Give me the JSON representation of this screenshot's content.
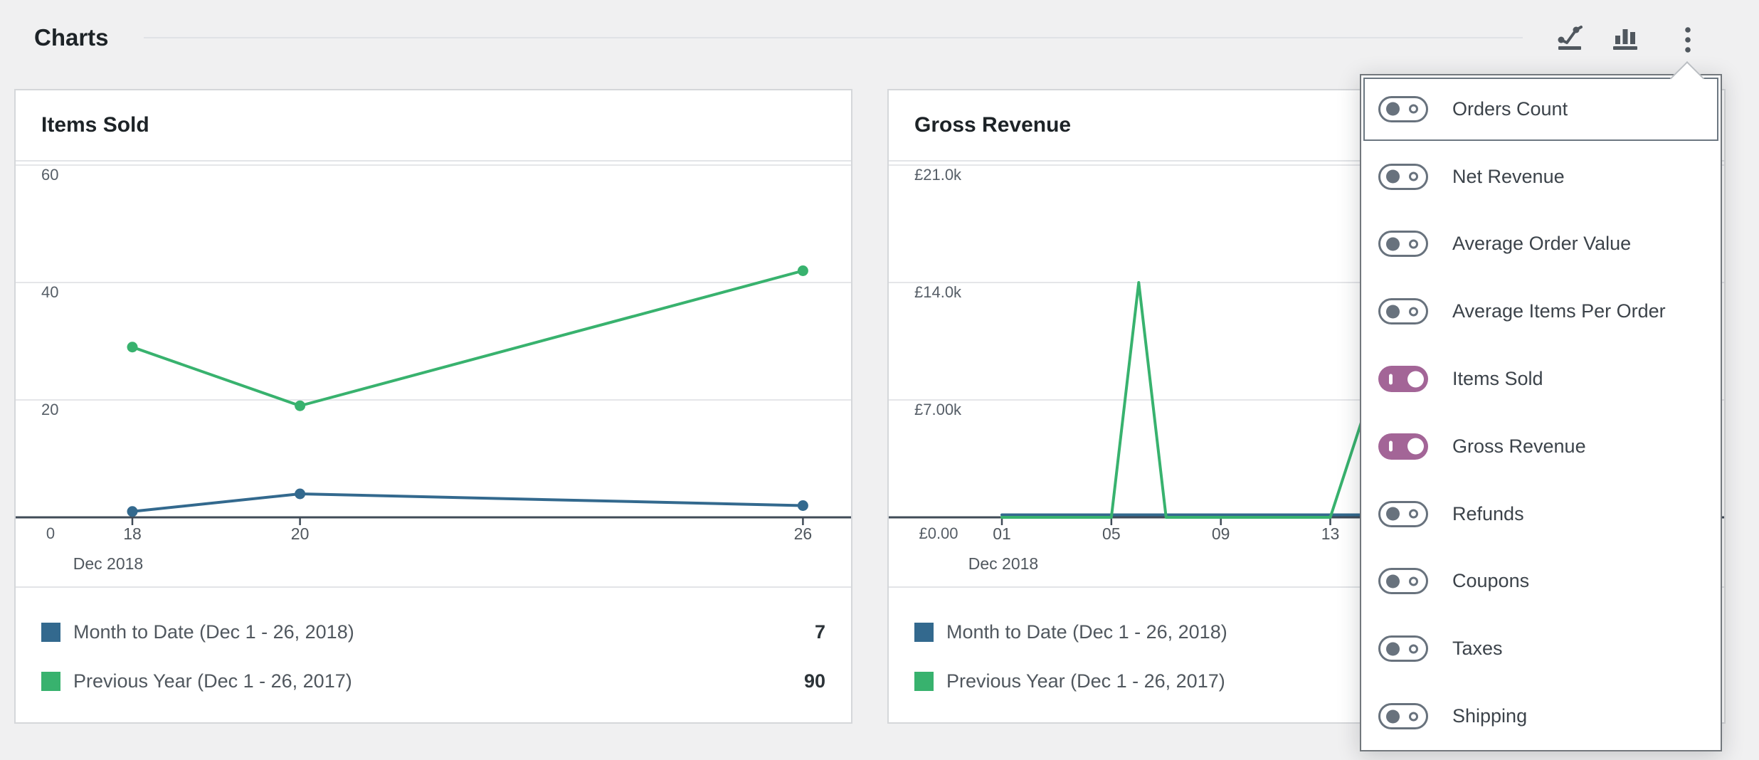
{
  "section": {
    "title": "Charts",
    "toolbar": {
      "line_chart_button": "line-chart-type",
      "bar_chart_button": "bar-chart-type",
      "ellipsis_button": "chart-options-menu"
    }
  },
  "colors": {
    "background": "#f0f0f1",
    "card_border": "#d5d7da",
    "gridline": "#e5e6e9",
    "baseline": "#404b57",
    "primary_blue": "#33698e",
    "secondary_green": "#38b26e",
    "toggle_on_purple": "#a36597",
    "toggle_off_gray": "#68727d"
  },
  "chart_data": [
    {
      "type": "line",
      "title": "Items Sold",
      "xlabel": "Dec 2018",
      "ylabel": "",
      "ylim": [
        0,
        60
      ],
      "y_tick_labels": [
        "60",
        "40",
        "20"
      ],
      "zero_label": "0",
      "x_tick_labels": [
        "18",
        "20",
        "26"
      ],
      "x_tick_days": [
        18,
        20,
        26
      ],
      "month_label": "Dec 2018",
      "grid": true,
      "markers": true,
      "legend_position": "bottom",
      "series": [
        {
          "name": "Month to Date (Dec 1 - 26, 2018)",
          "color": "#33698e",
          "points": [
            [
              18,
              1
            ],
            [
              20,
              4
            ],
            [
              26,
              2
            ]
          ]
        },
        {
          "name": "Previous Year (Dec 1 - 26, 2017)",
          "color": "#38b26e",
          "points": [
            [
              18,
              29
            ],
            [
              20,
              19
            ],
            [
              26,
              42
            ]
          ]
        }
      ],
      "legend": [
        {
          "label": "Month to Date (Dec 1 - 26, 2018)",
          "value": "7",
          "color": "#33698e"
        },
        {
          "label": "Previous Year (Dec 1 - 26, 2017)",
          "value": "90",
          "color": "#38b26e"
        }
      ]
    },
    {
      "type": "line",
      "title": "Gross Revenue",
      "xlabel": "Dec 2018",
      "ylabel": "",
      "ylim": [
        0,
        21000
      ],
      "y_tick_labels": [
        "£21.0k",
        "£14.0k",
        "£7.00k"
      ],
      "zero_label": "£0.00",
      "x_tick_labels": [
        "01",
        "05",
        "09",
        "13"
      ],
      "x_tick_days": [
        1,
        5,
        9,
        13
      ],
      "month_label": "Dec 2018",
      "grid": true,
      "markers": false,
      "legend_position": "bottom",
      "note": "right portion of chart and legend values hidden behind open dropdown menu",
      "series": [
        {
          "name": "Month to Date (Dec 1 - 26, 2018)",
          "color": "#33698e",
          "points": [
            [
              1,
              150
            ],
            [
              26,
              150
            ]
          ]
        },
        {
          "name": "Previous Year (Dec 1 - 26, 2017)",
          "color": "#38b26e",
          "points": [
            [
              1,
              0
            ],
            [
              5,
              0
            ],
            [
              6,
              14000
            ],
            [
              7,
              0
            ],
            [
              13,
              0
            ],
            [
              14.3,
              6500
            ]
          ]
        }
      ],
      "legend": [
        {
          "label": "Month to Date (Dec 1 - 26, 2018)",
          "value": "",
          "color": "#33698e"
        },
        {
          "label": "Previous Year (Dec 1 - 26, 2017)",
          "value": "",
          "color": "#38b26e"
        }
      ]
    }
  ],
  "menu": {
    "items": [
      {
        "label": "Orders Count",
        "on": false,
        "focused": true
      },
      {
        "label": "Net Revenue",
        "on": false,
        "focused": false
      },
      {
        "label": "Average Order Value",
        "on": false,
        "focused": false
      },
      {
        "label": "Average Items Per Order",
        "on": false,
        "focused": false
      },
      {
        "label": "Items Sold",
        "on": true,
        "focused": false
      },
      {
        "label": "Gross Revenue",
        "on": true,
        "focused": false
      },
      {
        "label": "Refunds",
        "on": false,
        "focused": false
      },
      {
        "label": "Coupons",
        "on": false,
        "focused": false
      },
      {
        "label": "Taxes",
        "on": false,
        "focused": false
      },
      {
        "label": "Shipping",
        "on": false,
        "focused": false
      }
    ]
  }
}
